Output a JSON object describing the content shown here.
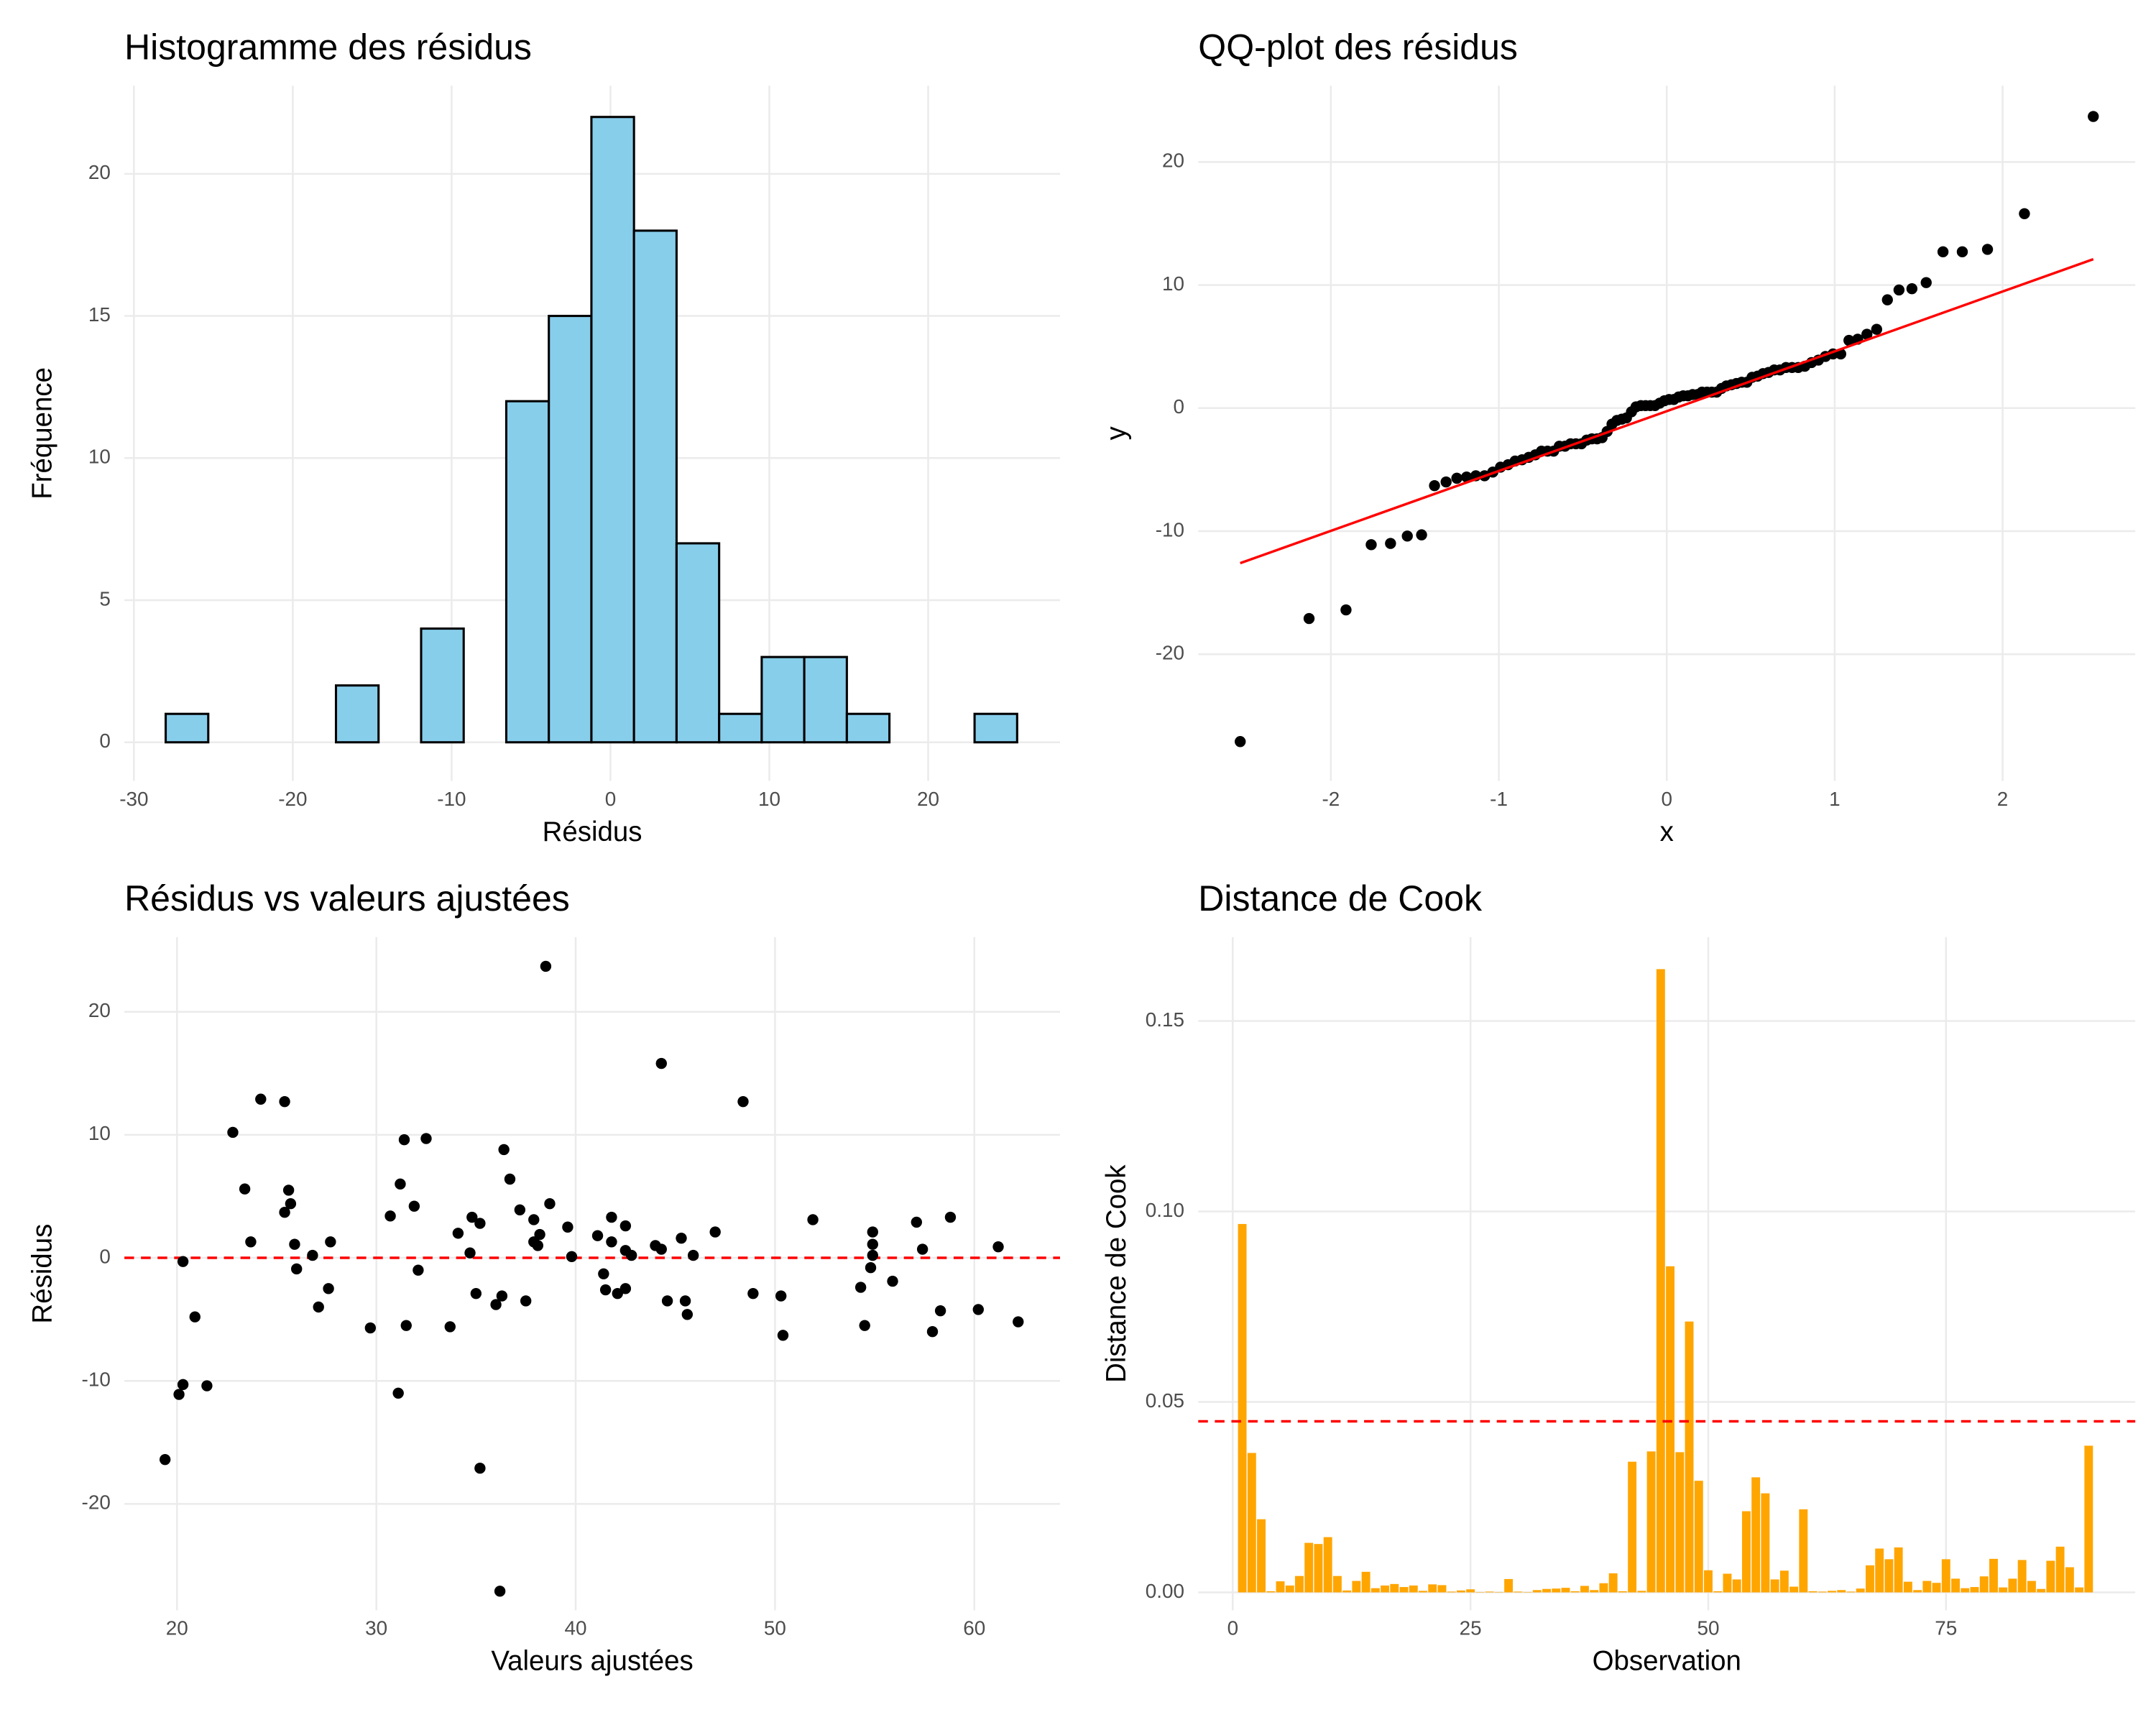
{
  "chart_data": [
    {
      "type": "histogram",
      "title": "Histogramme des résidus",
      "x_label": "Résidus",
      "y_label": "Fréquence",
      "bins": [
        -28,
        -25.32,
        -22.64,
        -19.96,
        -17.28,
        -14.6,
        -11.92,
        -9.24,
        -6.56,
        -3.88,
        -1.2,
        1.48,
        4.16,
        6.84,
        9.52,
        12.2,
        14.88,
        17.56,
        20.24,
        22.92,
        25.6
      ],
      "counts": [
        1,
        0,
        0,
        0,
        2,
        0,
        4,
        0,
        12,
        15,
        22,
        18,
        7,
        1,
        3,
        3,
        1,
        0,
        0,
        1
      ],
      "color": "#87CEEB",
      "edgecolor": "black",
      "xlim": [
        -30.6,
        28.3
      ],
      "ylim": [
        -1.36,
        23.1
      ],
      "xticks": [
        -30,
        -20,
        -10,
        0,
        10,
        20
      ],
      "yticks": [
        0,
        5,
        10,
        15,
        20
      ],
      "grid": true
    },
    {
      "type": "qq",
      "title": "QQ-plot des résidus",
      "x_label": "x",
      "y_label": "y",
      "x": [
        -2.54,
        -2.13,
        -1.91,
        -1.76,
        -1.645,
        -1.545,
        -1.46,
        -1.383,
        -1.314,
        -1.25,
        -1.192,
        -1.137,
        -1.085,
        -1.036,
        -0.99,
        -0.945,
        -0.903,
        -0.862,
        -0.822,
        -0.783,
        -0.746,
        -0.71,
        -0.674,
        -0.64,
        -0.606,
        -0.573,
        -0.541,
        -0.508,
        -0.477,
        -0.446,
        -0.415,
        -0.385,
        -0.355,
        -0.326,
        -0.297,
        -0.268,
        -0.24,
        -0.21,
        -0.183,
        -0.154,
        -0.126,
        -0.098,
        -0.07,
        -0.042,
        -0.014,
        0.014,
        0.042,
        0.07,
        0.098,
        0.126,
        0.154,
        0.183,
        0.21,
        0.24,
        0.268,
        0.297,
        0.326,
        0.355,
        0.385,
        0.415,
        0.446,
        0.477,
        0.508,
        0.541,
        0.573,
        0.606,
        0.64,
        0.674,
        0.71,
        0.746,
        0.783,
        0.822,
        0.862,
        0.903,
        0.945,
        0.99,
        1.036,
        1.085,
        1.137,
        1.192,
        1.25,
        1.314,
        1.383,
        1.46,
        1.545,
        1.645,
        1.76,
        1.91,
        2.13,
        2.54
      ],
      "y": [
        -27.1,
        -17.1,
        -16.4,
        -11.1,
        -11.0,
        -10.4,
        -10.3,
        -6.3,
        -6.0,
        -5.7,
        -5.6,
        -5.5,
        -5.5,
        -5.2,
        -4.8,
        -4.6,
        -4.3,
        -4.2,
        -4.0,
        -3.8,
        -3.5,
        -3.5,
        -3.5,
        -3.1,
        -3.1,
        -2.9,
        -2.9,
        -2.9,
        -2.6,
        -2.5,
        -2.5,
        -2.4,
        -1.9,
        -1.3,
        -1.0,
        -0.9,
        -0.8,
        -0.3,
        0.1,
        0.2,
        0.2,
        0.2,
        0.2,
        0.4,
        0.6,
        0.7,
        0.7,
        0.9,
        1.0,
        1.0,
        1.1,
        1.1,
        1.3,
        1.3,
        1.3,
        1.3,
        1.6,
        1.8,
        1.9,
        2.0,
        2.1,
        2.1,
        2.5,
        2.6,
        2.8,
        2.9,
        3.1,
        3.1,
        3.3,
        3.3,
        3.3,
        3.4,
        3.7,
        3.9,
        4.2,
        4.4,
        4.4,
        5.5,
        5.6,
        6.0,
        6.4,
        8.8,
        9.6,
        9.7,
        10.2,
        12.7,
        12.7,
        12.9,
        15.8,
        23.7
      ],
      "color": "black",
      "line": {
        "x": [
          -2.54,
          2.54
        ],
        "y": [
          -12.6,
          12.1
        ],
        "color": "red"
      },
      "xlim": [
        -2.79,
        2.79
      ],
      "ylim": [
        -30.3,
        26.2
      ],
      "xticks": [
        -2,
        -1,
        0,
        1,
        2
      ],
      "yticks": [
        -20,
        -10,
        0,
        10,
        20
      ],
      "grid": true
    },
    {
      "type": "scatter",
      "title": "Résidus vs valeurs ajustées",
      "x_label": "Valeurs ajustées",
      "y_label": "Résidus",
      "x": [
        19.4,
        20.1,
        20.3,
        20.3,
        20.9,
        21.5,
        22.8,
        23.4,
        23.7,
        24.2,
        25.4,
        25.6,
        25.7,
        25.4,
        25.9,
        26.0,
        26.8,
        27.1,
        27.6,
        27.7,
        29.7,
        30.7,
        31.1,
        31.2,
        31.4,
        31.5,
        31.9,
        32.1,
        32.5,
        33.7,
        34.1,
        34.7,
        34.8,
        35.0,
        35.2,
        35.2,
        36.0,
        36.2,
        36.3,
        36.4,
        36.7,
        37.2,
        37.5,
        37.9,
        37.9,
        38.1,
        38.2,
        38.5,
        38.7,
        39.6,
        39.8,
        41.1,
        41.4,
        41.5,
        41.8,
        41.8,
        42.1,
        42.5,
        42.5,
        42.5,
        42.8,
        44.0,
        44.3,
        44.3,
        44.6,
        45.3,
        45.5,
        45.6,
        45.9,
        47.0,
        48.4,
        48.9,
        50.3,
        50.4,
        51.9,
        54.3,
        54.5,
        54.8,
        54.9,
        54.9,
        54.9,
        55.9,
        57.1,
        57.4,
        57.9,
        58.3,
        58.8,
        60.2,
        61.2,
        62.2
      ],
      "y": [
        -16.4,
        -11.1,
        -10.3,
        -0.3,
        -4.8,
        -10.4,
        10.2,
        5.6,
        1.3,
        12.9,
        12.7,
        5.5,
        4.4,
        3.7,
        1.1,
        -0.9,
        0.2,
        -4.0,
        -2.5,
        1.3,
        -5.7,
        3.4,
        -11.0,
        6.0,
        9.6,
        -5.5,
        4.2,
        -1.0,
        9.7,
        -5.6,
        2.0,
        0.4,
        3.3,
        -2.9,
        2.8,
        -17.1,
        -3.8,
        -27.1,
        -3.1,
        8.8,
        6.4,
        3.9,
        -3.5,
        1.3,
        3.1,
        1.0,
        1.9,
        23.7,
        4.4,
        2.5,
        0.1,
        1.8,
        -1.3,
        -2.6,
        3.3,
        1.3,
        -2.9,
        2.6,
        -2.5,
        0.6,
        0.2,
        1.0,
        15.8,
        0.7,
        -3.5,
        1.6,
        -3.5,
        -4.6,
        0.2,
        2.1,
        12.7,
        -2.9,
        -3.1,
        -6.3,
        3.1,
        -2.4,
        -5.5,
        -0.8,
        0.2,
        1.1,
        2.1,
        -1.9,
        2.9,
        0.7,
        -6.0,
        -4.3,
        3.3,
        -4.2,
        0.9,
        -5.2
      ],
      "color": "black",
      "hline": {
        "value": 0,
        "color": "red"
      },
      "xlim": [
        17.36,
        64.3
      ],
      "ylim": [
        -28.65,
        26.07
      ],
      "xticks": [
        20,
        30,
        40,
        50,
        60
      ],
      "yticks": [
        -20,
        -10,
        0,
        10,
        20
      ],
      "grid": true
    },
    {
      "type": "bar",
      "title": "Distance de Cook",
      "x_label": "Observation",
      "y_label": "Distance de Cook",
      "x": [
        1,
        2,
        3,
        4,
        5,
        6,
        7,
        8,
        9,
        10,
        11,
        12,
        13,
        14,
        15,
        16,
        17,
        18,
        19,
        20,
        21,
        22,
        23,
        24,
        25,
        26,
        27,
        28,
        29,
        30,
        31,
        32,
        33,
        34,
        35,
        36,
        37,
        38,
        39,
        40,
        41,
        42,
        43,
        44,
        45,
        46,
        47,
        48,
        49,
        50,
        51,
        52,
        53,
        54,
        55,
        56,
        57,
        58,
        59,
        60,
        61,
        62,
        63,
        64,
        65,
        66,
        67,
        68,
        69,
        70,
        71,
        72,
        73,
        74,
        75,
        76,
        77,
        78,
        79,
        80,
        81,
        82,
        83,
        84,
        85,
        86,
        87,
        88,
        89,
        90
      ],
      "values": [
        0.0967,
        0.0366,
        0.0192,
        0.0003,
        0.0029,
        0.0018,
        0.0043,
        0.013,
        0.0127,
        0.0145,
        0.0043,
        0.0005,
        0.003,
        0.0054,
        0.0011,
        0.0018,
        0.0022,
        0.0014,
        0.0018,
        0.0004,
        0.0021,
        0.0019,
        0.0002,
        0.0005,
        0.0008,
        0.0001,
        0.0002,
        0.0001,
        0.0035,
        0.0002,
        0.0001,
        0.0006,
        0.0009,
        0.001,
        0.0012,
        0.0003,
        0.0017,
        0.0006,
        0.0024,
        0.005,
        0.0003,
        0.0343,
        0.0004,
        0.037,
        0.1636,
        0.0856,
        0.0368,
        0.0711,
        0.0293,
        0.0058,
        0.0003,
        0.0049,
        0.0034,
        0.0213,
        0.0302,
        0.026,
        0.0034,
        0.0057,
        0.0015,
        0.0218,
        0.0003,
        0.0002,
        0.0004,
        0.0006,
        0.0002,
        0.001,
        0.0071,
        0.0115,
        0.0087,
        0.0118,
        0.0028,
        0.0006,
        0.003,
        0.0025,
        0.0087,
        0.0036,
        0.0011,
        0.0014,
        0.0042,
        0.0088,
        0.0013,
        0.0036,
        0.0085,
        0.003,
        0.0009,
        0.0083,
        0.012,
        0.0066,
        0.0013,
        0.0385
      ],
      "color": "orange",
      "hline": {
        "value": 0.0449,
        "color": "red"
      },
      "xlim": [
        -3.63,
        94.9
      ],
      "ylim": [
        -0.0047,
        0.172
      ],
      "xticks": [
        0,
        25,
        50,
        75
      ],
      "yticks": [
        {
          "value": 0,
          "label": "0.00"
        },
        0.05,
        {
          "value": 0.1,
          "label": "0.10"
        },
        0.15
      ],
      "grid": true
    }
  ]
}
